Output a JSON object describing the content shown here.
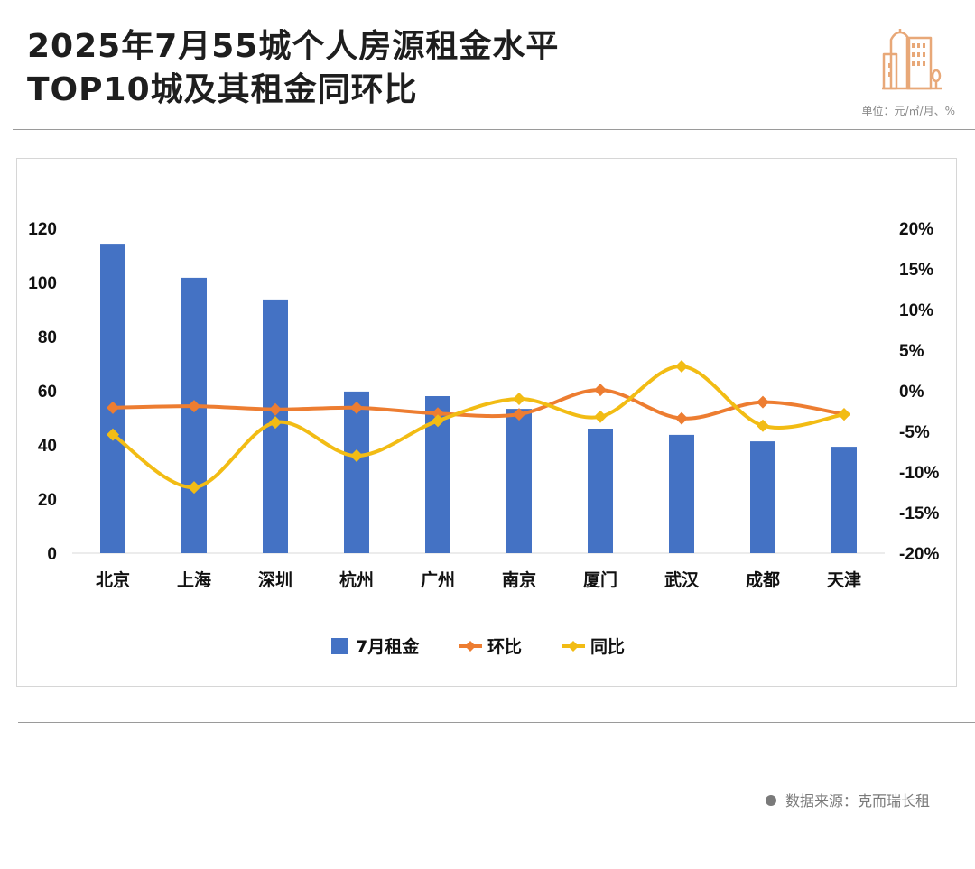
{
  "header": {
    "title_line1": "2025年7月55城个人房源租金水平",
    "title_line2": "TOP10城及其租金同环比",
    "unit": "单位：元/㎡/月、%",
    "logo_icon": "buildings-icon"
  },
  "footer": {
    "source": "数据来源：克而瑞长租"
  },
  "colors": {
    "bar": "#4472c4",
    "mom": "#ed7d31",
    "yoy": "#f2bc14",
    "logo": "#e8a878"
  },
  "chart_data": {
    "type": "bar",
    "title": "2025年7月55城个人房源租金水平TOP10城及其租金同环比",
    "categories": [
      "北京",
      "上海",
      "深圳",
      "杭州",
      "广州",
      "南京",
      "厦门",
      "武汉",
      "成都",
      "天津"
    ],
    "series": [
      {
        "name": "7月租金",
        "type": "bar",
        "axis": "left",
        "values": [
          114.3,
          101.7,
          93.7,
          59.7,
          58.0,
          53.3,
          46.0,
          43.7,
          41.3,
          39.3
        ]
      },
      {
        "name": "环比",
        "type": "line",
        "axis": "right",
        "unit": "%",
        "values": [
          -2.1,
          -1.9,
          -2.3,
          -2.1,
          -2.8,
          -2.9,
          0.1,
          -3.4,
          -1.4,
          -2.9
        ]
      },
      {
        "name": "同比",
        "type": "line",
        "axis": "right",
        "unit": "%",
        "values": [
          -5.4,
          -11.9,
          -3.9,
          -8.0,
          -3.7,
          -1.0,
          -3.2,
          3.0,
          -4.3,
          -2.9
        ]
      }
    ],
    "y_left": {
      "min": 0,
      "max": 120,
      "ticks": [
        "0",
        "20",
        "40",
        "60",
        "80",
        "100",
        "120"
      ],
      "label": ""
    },
    "y_right": {
      "min": -20,
      "max": 20,
      "ticks": [
        "-20%",
        "-15%",
        "-10%",
        "-5%",
        "0%",
        "5%",
        "10%",
        "15%",
        "20%"
      ],
      "label": ""
    },
    "xlabel": "",
    "grid": false,
    "legend": {
      "position": "bottom",
      "entries": [
        "7月租金",
        "环比",
        "同比"
      ]
    }
  }
}
